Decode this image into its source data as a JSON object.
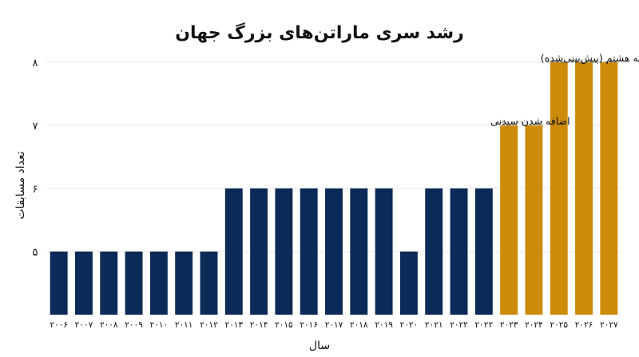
{
  "chart_data": {
    "type": "bar",
    "title": "رشد سری ماراتن‌های بزرگ جهان",
    "xlabel": "سال",
    "ylabel": "تعداد مسابقات",
    "ylim": [
      4,
      8.2
    ],
    "yticks": [
      5,
      6,
      7,
      8
    ],
    "ytick_labels": [
      "۵",
      "۶",
      "۷",
      "۸"
    ],
    "grid": true,
    "categories": [
      "۲۰۰۶",
      "۲۰۰۷",
      "۲۰۰۸",
      "۲۰۰۹",
      "۲۰۱۰",
      "۲۰۱۱",
      "۲۰۱۲",
      "۲۰۱۳",
      "۲۰۱۴",
      "۲۰۱۵",
      "۲۰۱۶",
      "۲۰۱۷",
      "۲۰۱۸",
      "۲۰۱۹",
      "۲۰۲۰",
      "۲۰۲۱",
      "۲۰۲۲",
      "۲۰۲۲",
      "۲۰۲۳",
      "۲۰۲۴",
      "۲۰۲۵",
      "۲۰۲۶",
      "۲۰۲۷"
    ],
    "values": [
      5,
      5,
      5,
      5,
      5,
      5,
      5,
      6,
      6,
      6,
      6,
      6,
      6,
      6,
      5,
      6,
      6,
      6,
      7,
      7,
      8,
      8,
      8
    ],
    "colors": {
      "historical": "#0c2a57",
      "projected": "#cc8b0a"
    },
    "bar_color_groups": [
      "historical",
      "historical",
      "historical",
      "historical",
      "historical",
      "historical",
      "historical",
      "historical",
      "historical",
      "historical",
      "historical",
      "historical",
      "historical",
      "historical",
      "historical",
      "historical",
      "historical",
      "historical",
      "projected",
      "projected",
      "projected",
      "projected",
      "projected"
    ],
    "annotations": [
      {
        "text": "مسابقه هشتم (پیش‌بینی‌شده)",
        "target_index": 20,
        "value": 8
      },
      {
        "text": "اضافه شدن سیدنی",
        "target_index": 18,
        "value": 7
      }
    ]
  }
}
